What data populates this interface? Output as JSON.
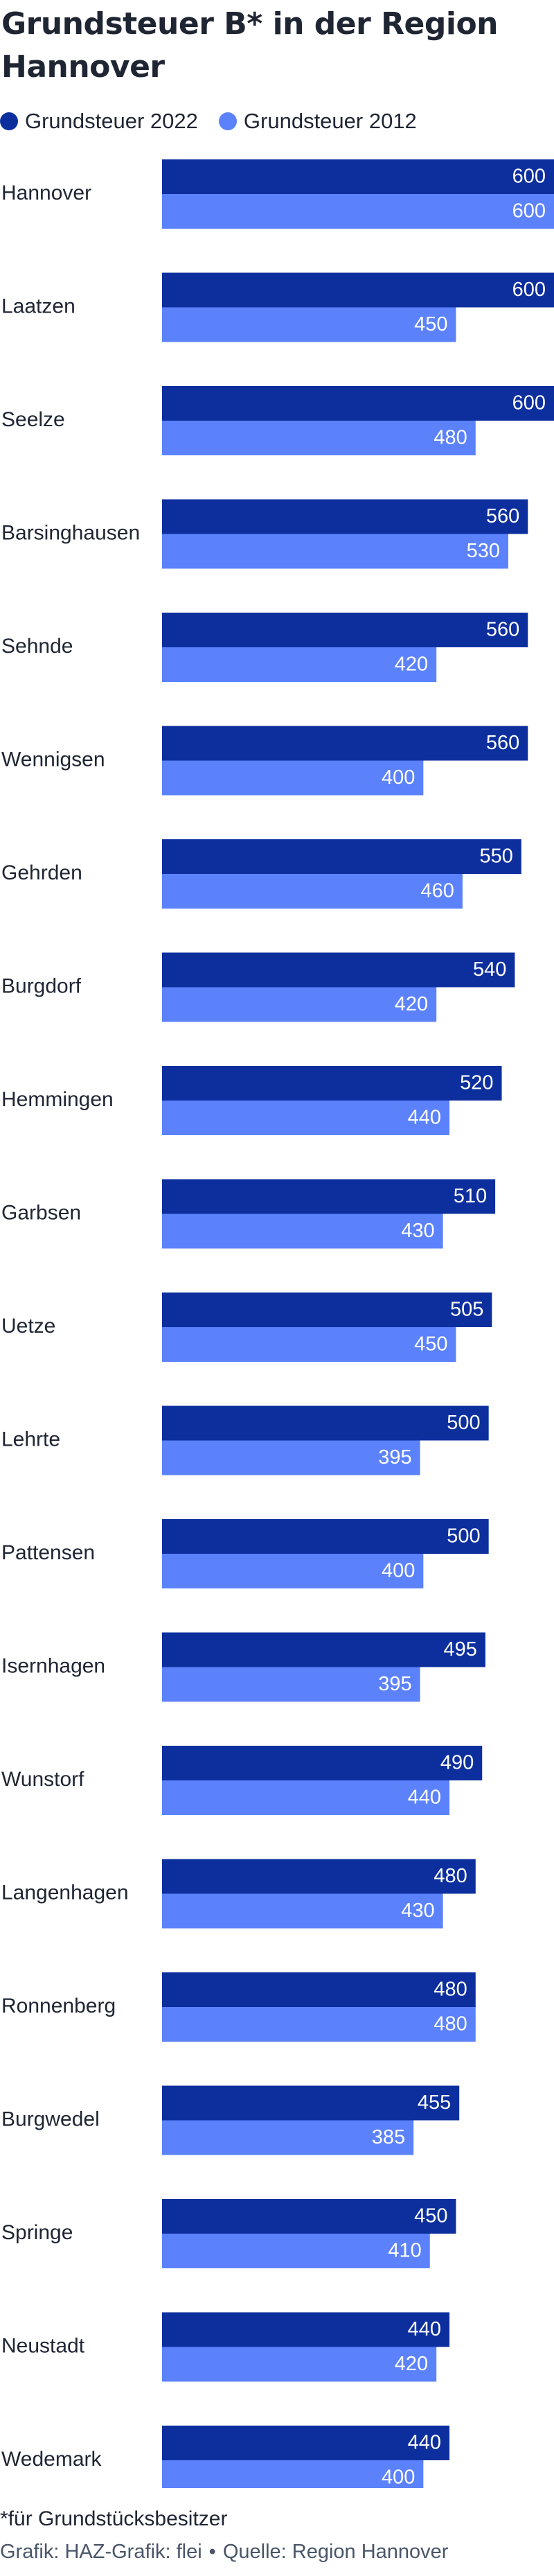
{
  "title": "Grundsteuer B* in der Region Hannover",
  "legend": [
    {
      "label": "Grundsteuer 2022",
      "color": "#0d2f9e"
    },
    {
      "label": "Grundsteuer 2012",
      "color": "#5b82fb"
    }
  ],
  "chart_data": {
    "type": "bar",
    "orientation": "horizontal",
    "title": "Grundsteuer B* in der Region Hannover",
    "categories": [
      "Hannover",
      "Laatzen",
      "Seelze",
      "Barsinghausen",
      "Sehnde",
      "Wennigsen",
      "Gehrden",
      "Burgdorf",
      "Hemmingen",
      "Garbsen",
      "Uetze",
      "Lehrte",
      "Pattensen",
      "Isernhagen",
      "Wunstorf",
      "Langenhagen",
      "Ronnenberg",
      "Burgwedel",
      "Springe",
      "Neustadt",
      "Wedemark"
    ],
    "series": [
      {
        "name": "Grundsteuer 2022",
        "color": "#0d2f9e",
        "values": [
          600,
          600,
          600,
          560,
          560,
          560,
          550,
          540,
          520,
          510,
          505,
          500,
          500,
          495,
          490,
          480,
          480,
          455,
          450,
          440,
          440
        ]
      },
      {
        "name": "Grundsteuer 2012",
        "color": "#5b82fb",
        "values": [
          600,
          450,
          480,
          530,
          420,
          400,
          460,
          420,
          440,
          430,
          450,
          395,
          400,
          395,
          440,
          430,
          480,
          385,
          410,
          420,
          400
        ]
      }
    ],
    "xlim": [
      0,
      600
    ],
    "grid": false,
    "legend_position": "top-left"
  },
  "footnote": "*für Grundstücksbesitzer",
  "source": {
    "grafik": "Grafik: HAZ-Grafik: flei",
    "separator": "•",
    "quelle": "Quelle: Region Hannover"
  }
}
